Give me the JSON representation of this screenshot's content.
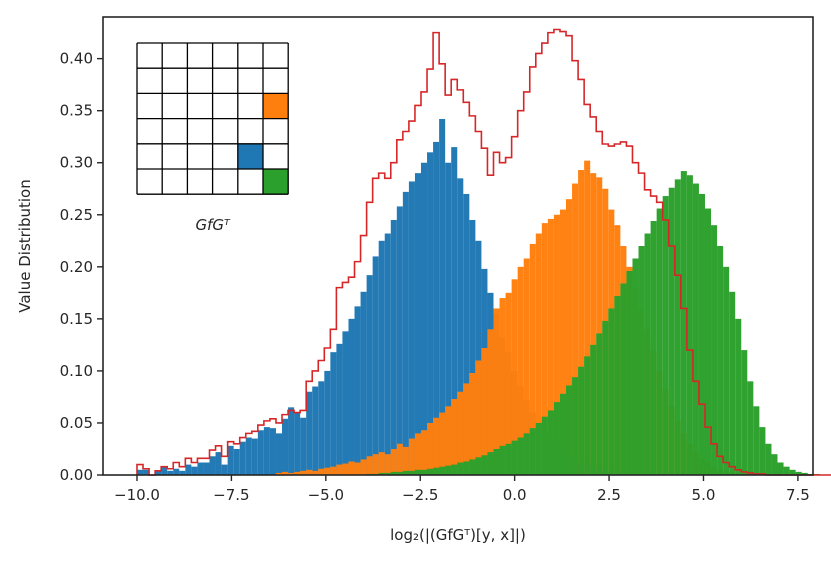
{
  "chart_data": {
    "type": "bar",
    "title": "",
    "xlabel": "log₂(|(GfGᵀ)[y, x]|)",
    "ylabel": "Value Distribution",
    "xlim": [
      -10.9,
      7.9
    ],
    "ylim": [
      0,
      0.44
    ],
    "xticks": [
      -10.0,
      -7.5,
      -5.0,
      -2.5,
      0.0,
      2.5,
      5.0,
      7.5
    ],
    "xtick_labels": [
      "−10.0",
      "−7.5",
      "−5.0",
      "−2.5",
      "0.0",
      "2.5",
      "5.0",
      "7.5"
    ],
    "yticks": [
      0,
      0.05,
      0.1,
      0.15,
      0.2,
      0.25,
      0.3,
      0.35,
      0.4
    ],
    "ytick_labels": [
      "0.00",
      "0.05",
      "0.10",
      "0.15",
      "0.20",
      "0.25",
      "0.30",
      "0.35",
      "0.40"
    ],
    "grid": false,
    "bin_start": -10.0,
    "bin_width": 0.16,
    "series": [
      {
        "color": "#1f77b4",
        "values": [
          0.005,
          0.005,
          0.0,
          0.004,
          0.008,
          0.004,
          0.006,
          0.004,
          0.01,
          0.008,
          0.012,
          0.012,
          0.018,
          0.022,
          0.01,
          0.028,
          0.025,
          0.032,
          0.036,
          0.035,
          0.043,
          0.046,
          0.045,
          0.04,
          0.054,
          0.065,
          0.06,
          0.055,
          0.08,
          0.085,
          0.09,
          0.1,
          0.118,
          0.126,
          0.138,
          0.15,
          0.162,
          0.176,
          0.192,
          0.21,
          0.225,
          0.232,
          0.245,
          0.258,
          0.272,
          0.282,
          0.29,
          0.3,
          0.31,
          0.32,
          0.342,
          0.3,
          0.315,
          0.285,
          0.27,
          0.245,
          0.225,
          0.198,
          0.175,
          0.155,
          0.132,
          0.118,
          0.1,
          0.085,
          0.072,
          0.06,
          0.05,
          0.04,
          0.032,
          0.027,
          0.022,
          0.018,
          0.015,
          0.013,
          0.011,
          0.009,
          0.007,
          0.005,
          0.004,
          0.003,
          0.002,
          0.002,
          0.001,
          0.001,
          0.001,
          0.0,
          0.0,
          0.0,
          0.0,
          0.0,
          0.0,
          0.0,
          0.0,
          0.0,
          0.0,
          0.0,
          0.0,
          0.0,
          0.0,
          0.0,
          0.0,
          0.0,
          0.0,
          0.0,
          0.0,
          0.0,
          0.0,
          0.0,
          0.0,
          0.0,
          0.0,
          0.0,
          0.0,
          0.0,
          0.0,
          0.0,
          0.0
        ]
      },
      {
        "color": "#ff7f0e",
        "values": [
          0.0,
          0.0,
          0.0,
          0.0,
          0.0,
          0.0,
          0.0,
          0.0,
          0.0,
          0.0,
          0.0,
          0.0,
          0.0,
          0.0,
          0.0,
          0.0,
          0.0,
          0.0,
          0.0,
          0.0,
          0.0,
          0.0,
          0.0,
          0.002,
          0.003,
          0.002,
          0.003,
          0.004,
          0.005,
          0.004,
          0.006,
          0.007,
          0.008,
          0.01,
          0.011,
          0.013,
          0.012,
          0.015,
          0.018,
          0.02,
          0.022,
          0.02,
          0.025,
          0.03,
          0.027,
          0.035,
          0.04,
          0.043,
          0.05,
          0.055,
          0.06,
          0.066,
          0.073,
          0.08,
          0.088,
          0.098,
          0.11,
          0.122,
          0.14,
          0.16,
          0.17,
          0.175,
          0.188,
          0.2,
          0.208,
          0.222,
          0.232,
          0.242,
          0.246,
          0.25,
          0.255,
          0.265,
          0.28,
          0.293,
          0.302,
          0.29,
          0.286,
          0.275,
          0.255,
          0.24,
          0.22,
          0.2,
          0.18,
          0.16,
          0.14,
          0.12,
          0.1,
          0.082,
          0.066,
          0.052,
          0.04,
          0.03,
          0.022,
          0.016,
          0.012,
          0.008,
          0.006,
          0.004,
          0.003,
          0.002,
          0.001,
          0.001,
          0.0,
          0.0,
          0.0,
          0.0,
          0.0,
          0.0,
          0.0,
          0.0,
          0.0,
          0.0,
          0.0,
          0.0,
          0.0,
          0.0,
          0.0
        ]
      },
      {
        "color": "#2ca02c",
        "values": [
          0.0,
          0.0,
          0.0,
          0.0,
          0.0,
          0.0,
          0.0,
          0.0,
          0.0,
          0.0,
          0.0,
          0.0,
          0.0,
          0.0,
          0.0,
          0.0,
          0.0,
          0.0,
          0.0,
          0.0,
          0.0,
          0.0,
          0.0,
          0.0,
          0.0,
          0.0,
          0.0,
          0.0,
          0.0,
          0.0,
          0.0,
          0.0,
          0.0,
          0.0,
          0.0,
          0.0,
          0.0,
          0.0,
          0.001,
          0.001,
          0.002,
          0.002,
          0.003,
          0.003,
          0.004,
          0.004,
          0.005,
          0.005,
          0.006,
          0.007,
          0.008,
          0.009,
          0.01,
          0.012,
          0.013,
          0.015,
          0.017,
          0.019,
          0.022,
          0.025,
          0.028,
          0.03,
          0.033,
          0.036,
          0.04,
          0.045,
          0.05,
          0.056,
          0.062,
          0.07,
          0.078,
          0.086,
          0.094,
          0.104,
          0.114,
          0.125,
          0.136,
          0.148,
          0.16,
          0.172,
          0.184,
          0.196,
          0.208,
          0.22,
          0.232,
          0.244,
          0.256,
          0.268,
          0.276,
          0.284,
          0.292,
          0.288,
          0.28,
          0.27,
          0.256,
          0.24,
          0.22,
          0.2,
          0.176,
          0.15,
          0.12,
          0.09,
          0.066,
          0.046,
          0.03,
          0.02,
          0.012,
          0.008,
          0.005,
          0.003,
          0.002,
          0.001,
          0.001,
          0.0,
          0.0,
          0.0,
          0.0
        ]
      }
    ],
    "envelope": {
      "color": "#d62728",
      "values": [
        0.01,
        0.006,
        0.0,
        0.004,
        0.008,
        0.006,
        0.012,
        0.008,
        0.016,
        0.012,
        0.016,
        0.016,
        0.024,
        0.028,
        0.018,
        0.032,
        0.03,
        0.036,
        0.04,
        0.042,
        0.048,
        0.052,
        0.054,
        0.05,
        0.058,
        0.062,
        0.06,
        0.062,
        0.09,
        0.1,
        0.11,
        0.122,
        0.14,
        0.18,
        0.185,
        0.19,
        0.205,
        0.23,
        0.262,
        0.285,
        0.29,
        0.285,
        0.3,
        0.322,
        0.33,
        0.34,
        0.355,
        0.368,
        0.39,
        0.425,
        0.395,
        0.365,
        0.38,
        0.37,
        0.358,
        0.345,
        0.33,
        0.314,
        0.288,
        0.31,
        0.3,
        0.305,
        0.325,
        0.35,
        0.368,
        0.392,
        0.405,
        0.415,
        0.425,
        0.428,
        0.426,
        0.422,
        0.398,
        0.38,
        0.356,
        0.344,
        0.33,
        0.318,
        0.316,
        0.318,
        0.32,
        0.316,
        0.3,
        0.29,
        0.274,
        0.268,
        0.262,
        0.245,
        0.22,
        0.192,
        0.16,
        0.12,
        0.09,
        0.068,
        0.046,
        0.03,
        0.018,
        0.012,
        0.008,
        0.005,
        0.003,
        0.002,
        0.001,
        0.001,
        0.0,
        0.0,
        0.0,
        0.0,
        0.0,
        0.0,
        0.0,
        0.0,
        0.0,
        0.0,
        0.0,
        0.0,
        0.0
      ]
    },
    "inset": {
      "label": "GfGᵀ",
      "rows": 6,
      "cols": 6,
      "highlighted_cells": [
        {
          "row": 2,
          "col": 5,
          "color": "#ff7f0e"
        },
        {
          "row": 4,
          "col": 4,
          "color": "#1f77b4"
        },
        {
          "row": 5,
          "col": 5,
          "color": "#2ca02c"
        }
      ]
    }
  }
}
